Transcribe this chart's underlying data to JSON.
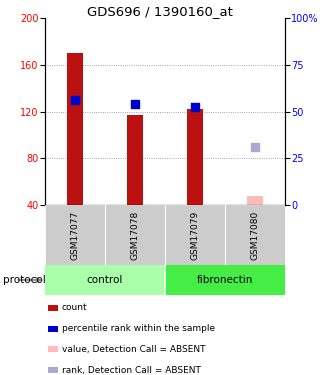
{
  "title": "GDS696 / 1390160_at",
  "samples": [
    "GSM17077",
    "GSM17078",
    "GSM17079",
    "GSM17080"
  ],
  "ylim_left": [
    40,
    200
  ],
  "ylim_right": [
    0,
    100
  ],
  "yticks_left": [
    40,
    80,
    120,
    160,
    200
  ],
  "yticks_right": [
    0,
    25,
    50,
    75,
    100
  ],
  "yright_labels": [
    "0",
    "25",
    "50",
    "75",
    "100%"
  ],
  "bar_values": [
    170,
    117,
    122,
    null
  ],
  "bar_color": "#bb1111",
  "absent_bar_value": 48,
  "absent_bar_color": "#ffbbbb",
  "blue_square_values": [
    130,
    126,
    124,
    null
  ],
  "absent_square_value": 90,
  "blue_color": "#0000cc",
  "absent_square_color": "#aaaacc",
  "bar_width": 0.28,
  "square_size": 28,
  "group_colors_control": "#aaffaa",
  "group_colors_fibronectin": "#44ee44",
  "label_area_color": "#cccccc",
  "legend_items": [
    {
      "color": "#bb1111",
      "label": "count"
    },
    {
      "color": "#0000cc",
      "label": "percentile rank within the sample"
    },
    {
      "color": "#ffbbbb",
      "label": "value, Detection Call = ABSENT"
    },
    {
      "color": "#aaaacc",
      "label": "rank, Detection Call = ABSENT"
    }
  ],
  "dotted_line_color": "#888888",
  "bg_color": "#ffffff"
}
